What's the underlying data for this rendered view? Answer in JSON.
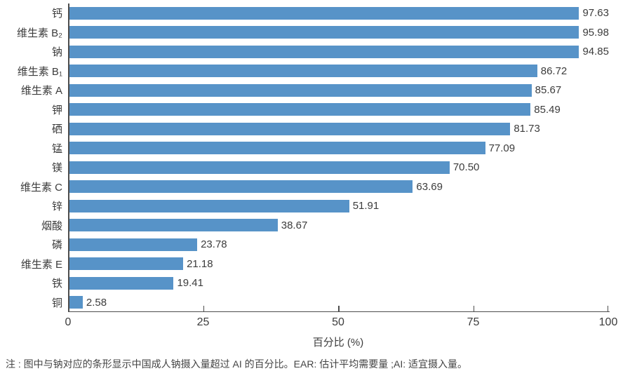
{
  "chart_data": {
    "type": "bar",
    "orientation": "horizontal",
    "categories": [
      "钙",
      "维生素 B₂",
      "钠",
      "维生素 B₁",
      "维生素 A",
      "钾",
      "硒",
      "锰",
      "镁",
      "维生素 C",
      "锌",
      "烟酸",
      "磷",
      "维生素 E",
      "铁",
      "铜"
    ],
    "values": [
      97.63,
      95.98,
      94.85,
      86.72,
      85.67,
      85.49,
      81.73,
      77.09,
      70.5,
      63.69,
      51.91,
      38.67,
      23.78,
      21.18,
      19.41,
      2.58
    ],
    "value_labels": [
      "97.63",
      "95.98",
      "94.85",
      "86.72",
      "85.67",
      "85.49",
      "81.73",
      "77.09",
      "70.50",
      "63.69",
      "51.91",
      "38.67",
      "23.78",
      "21.18",
      "19.41",
      "2.58"
    ],
    "title": "",
    "xlabel": "百分比 (%)",
    "ylabel": "",
    "xlim": [
      0,
      100
    ],
    "xticks": [
      0,
      25,
      50,
      75,
      100
    ],
    "xtick_labels": [
      "0",
      "25",
      "50",
      "75",
      "100"
    ],
    "grid": false,
    "legend": false,
    "bar_color": "#5793c8"
  },
  "note": "注 : 图中与钠对应的条形显示中国成人钠摄入量超过 AI 的百分比。EAR: 估计平均需要量 ;AI: 适宜摄入量。"
}
